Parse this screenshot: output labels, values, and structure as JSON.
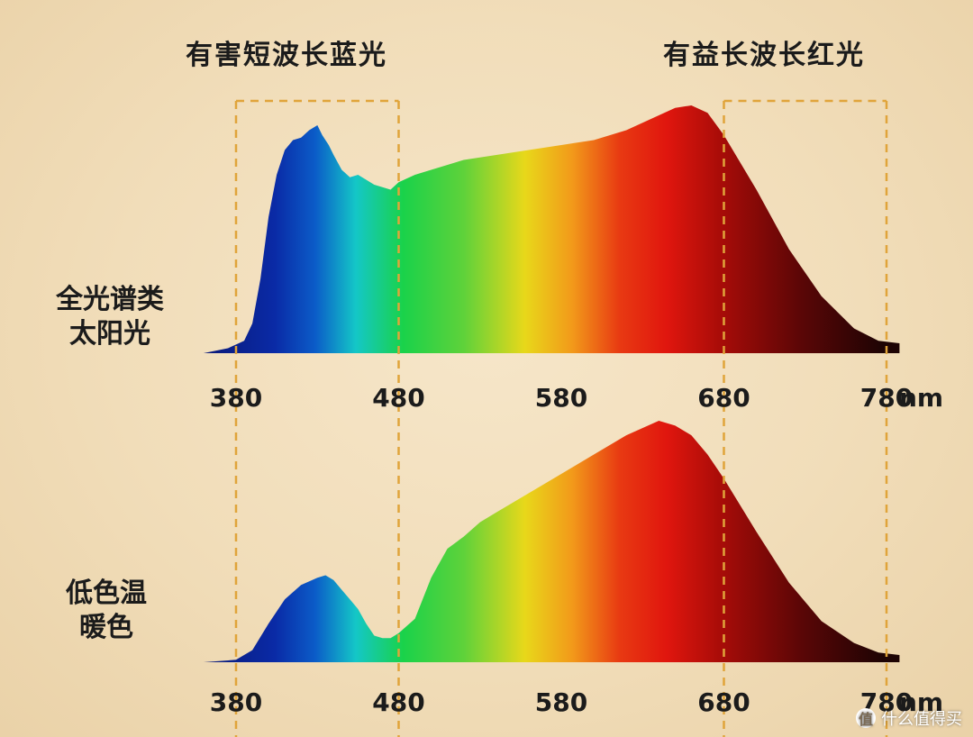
{
  "header": {
    "left_label": "有害短波长蓝光",
    "right_label": "有益长波长红光"
  },
  "panels": [
    {
      "label_line1": "全光谱类",
      "label_line2": "太阳光"
    },
    {
      "label_line1": "低色温",
      "label_line2": "暖色"
    }
  ],
  "watermark": "什么值得买",
  "colors": {
    "background": "#f1ddb9",
    "guide_line": "#e0a43a",
    "text": "#1b1b1b"
  },
  "chart_data": [
    {
      "type": "area",
      "title": "",
      "xlabel": "",
      "xunit": "nm",
      "xticks": [
        380,
        480,
        580,
        680,
        780
      ],
      "xlim": [
        380,
        780
      ],
      "ylim": [
        0,
        1
      ],
      "highlight_bands": [
        [
          380,
          480
        ],
        [
          680,
          780
        ]
      ],
      "x": [
        360,
        375,
        385,
        390,
        395,
        400,
        405,
        410,
        415,
        420,
        425,
        430,
        433,
        437,
        440,
        445,
        450,
        455,
        460,
        465,
        470,
        475,
        480,
        490,
        500,
        520,
        540,
        560,
        580,
        600,
        620,
        640,
        650,
        660,
        670,
        680,
        700,
        720,
        740,
        760,
        775,
        788
      ],
      "y": [
        0.0,
        0.02,
        0.05,
        0.12,
        0.3,
        0.55,
        0.72,
        0.82,
        0.86,
        0.87,
        0.9,
        0.92,
        0.88,
        0.84,
        0.8,
        0.74,
        0.71,
        0.72,
        0.7,
        0.68,
        0.67,
        0.66,
        0.69,
        0.72,
        0.74,
        0.78,
        0.8,
        0.82,
        0.84,
        0.86,
        0.9,
        0.96,
        0.99,
        1.0,
        0.97,
        0.88,
        0.66,
        0.42,
        0.23,
        0.1,
        0.05,
        0.04
      ]
    },
    {
      "type": "area",
      "title": "",
      "xlabel": "",
      "xunit": "nm",
      "xticks": [
        380,
        480,
        580,
        680,
        780
      ],
      "xlim": [
        380,
        780
      ],
      "ylim": [
        0,
        1
      ],
      "highlight_bands": [
        [
          380,
          480
        ],
        [
          680,
          780
        ]
      ],
      "x": [
        360,
        380,
        390,
        400,
        410,
        420,
        430,
        435,
        440,
        445,
        450,
        455,
        460,
        465,
        470,
        475,
        480,
        490,
        500,
        510,
        520,
        530,
        540,
        560,
        580,
        600,
        620,
        640,
        650,
        660,
        670,
        680,
        700,
        720,
        740,
        760,
        775,
        788
      ],
      "y": [
        0.0,
        0.01,
        0.05,
        0.16,
        0.26,
        0.32,
        0.35,
        0.36,
        0.34,
        0.3,
        0.26,
        0.22,
        0.16,
        0.11,
        0.1,
        0.1,
        0.12,
        0.18,
        0.35,
        0.47,
        0.52,
        0.58,
        0.62,
        0.7,
        0.78,
        0.86,
        0.94,
        1.0,
        0.98,
        0.94,
        0.86,
        0.76,
        0.54,
        0.33,
        0.17,
        0.08,
        0.04,
        0.03
      ]
    }
  ]
}
